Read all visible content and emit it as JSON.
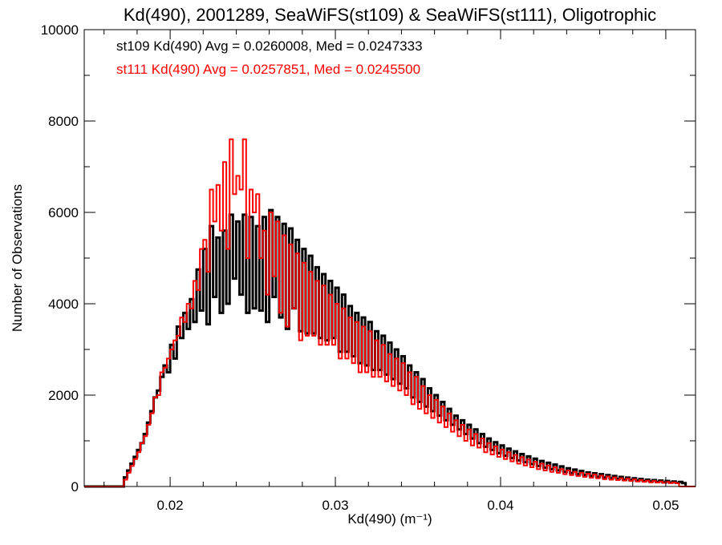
{
  "chart_data": {
    "type": "histogram-step",
    "title": "Kd(490), 2001289, SeaWiFS(st109) & SeaWiFS(st111), Oligotrophic",
    "xlabel": "Kd(490) (m⁻¹)",
    "ylabel": "Number of Observations",
    "xlim": [
      0.0148,
      0.0518
    ],
    "ylim": [
      0,
      10000
    ],
    "x_major_ticks": [
      0.02,
      0.03,
      0.04,
      0.05
    ],
    "x_tick_labels": [
      "0.02",
      "0.03",
      "0.04",
      "0.05"
    ],
    "y_major_ticks": [
      0,
      2000,
      4000,
      6000,
      8000,
      10000
    ],
    "y_tick_labels": [
      "0",
      "2000",
      "4000",
      "6000",
      "8000",
      "10000"
    ],
    "annotations": [
      {
        "text": "st109 Kd(490) Avg = 0.0260008, Med = 0.0247333",
        "color": "#000000"
      },
      {
        "text": "st111 Kd(490) Avg = 0.0257851, Med = 0.0245500",
        "color": "#ff0000"
      }
    ],
    "bin_edges": {
      "start": 0.0148,
      "width": 0.0002
    },
    "series": [
      {
        "name": "st109",
        "color": "#000000",
        "values": [
          0,
          0,
          0,
          0,
          0,
          0,
          0,
          0,
          0,
          0,
          0,
          0,
          200,
          350,
          500,
          650,
          800,
          950,
          1150,
          1400,
          1650,
          1950,
          2100,
          2400,
          2650,
          2500,
          3100,
          2800,
          3500,
          3250,
          3800,
          3450,
          4100,
          3600,
          4750,
          3850,
          5200,
          3550,
          5700,
          4150,
          5450,
          3800,
          5600,
          4000,
          5950,
          4550,
          5800,
          4200,
          5950,
          3800,
          5900,
          3900,
          5700,
          3850,
          5900,
          3600,
          6050,
          4150,
          5900,
          3700,
          5750,
          3450,
          5650,
          3900,
          5400,
          3400,
          5200,
          3350,
          5050,
          3350,
          4800,
          3250,
          4650,
          3200,
          4500,
          3250,
          4350,
          2950,
          4200,
          2950,
          3950,
          2850,
          3800,
          2700,
          3700,
          2650,
          3600,
          2550,
          3400,
          2550,
          3300,
          2450,
          3150,
          2350,
          3000,
          2250,
          2850,
          2150,
          2650,
          1950,
          2500,
          1850,
          2350,
          1750,
          2150,
          1650,
          2000,
          1550,
          1850,
          1450,
          1700,
          1350,
          1550,
          1250,
          1450,
          1150,
          1350,
          1050,
          1250,
          950,
          1150,
          870,
          1050,
          800,
          970,
          730,
          900,
          670,
          830,
          620,
          770,
          570,
          710,
          530,
          660,
          490,
          610,
          450,
          560,
          410,
          520,
          380,
          480,
          350,
          440,
          320,
          400,
          295,
          370,
          270,
          340,
          250,
          310,
          230,
          290,
          210,
          270,
          195,
          250,
          180,
          230,
          165,
          210,
          150,
          195,
          140,
          180,
          130,
          165,
          120,
          150,
          110,
          140,
          100,
          130,
          90,
          120,
          85,
          110,
          80,
          100,
          75
        ]
      },
      {
        "name": "st111",
        "color": "#ff0000",
        "values": [
          0,
          0,
          0,
          0,
          0,
          0,
          0,
          0,
          0,
          0,
          0,
          0,
          150,
          300,
          450,
          600,
          750,
          950,
          1100,
          1350,
          1600,
          1950,
          2000,
          2500,
          2600,
          2800,
          3000,
          3200,
          3300,
          3700,
          3600,
          4000,
          3900,
          4500,
          4300,
          5200,
          5400,
          4700,
          6500,
          5800,
          6600,
          5600,
          7100,
          5200,
          7600,
          6400,
          6800,
          6500,
          7600,
          5000,
          6500,
          6000,
          6400,
          5000,
          5600,
          4200,
          6000,
          4600,
          5800,
          3800,
          5500,
          3500,
          5300,
          3900,
          5100,
          3200,
          4900,
          3300,
          4700,
          3300,
          4500,
          3100,
          4400,
          3100,
          4200,
          3100,
          4000,
          2800,
          3900,
          2800,
          3700,
          2700,
          3600,
          2500,
          3500,
          2500,
          3400,
          2400,
          3200,
          2400,
          3100,
          2300,
          2900,
          2200,
          2800,
          2100,
          2700,
          2000,
          2500,
          1800,
          2400,
          1700,
          2200,
          1600,
          2000,
          1500,
          1900,
          1400,
          1750,
          1300,
          1600,
          1200,
          1450,
          1100,
          1350,
          1000,
          1250,
          900,
          1150,
          850,
          1050,
          750,
          950,
          700,
          880,
          650,
          810,
          600,
          750,
          550,
          690,
          500,
          640,
          460,
          590,
          420,
          540,
          380,
          500,
          350,
          460,
          320,
          420,
          300,
          380,
          270,
          350,
          250,
          320,
          230,
          300,
          210,
          280,
          190,
          260,
          180,
          240,
          160,
          220,
          150,
          200,
          140,
          180,
          130,
          170,
          120,
          155,
          110,
          140,
          100,
          130,
          90,
          120,
          85,
          110,
          80,
          100,
          75,
          90,
          70
        ]
      }
    ]
  }
}
